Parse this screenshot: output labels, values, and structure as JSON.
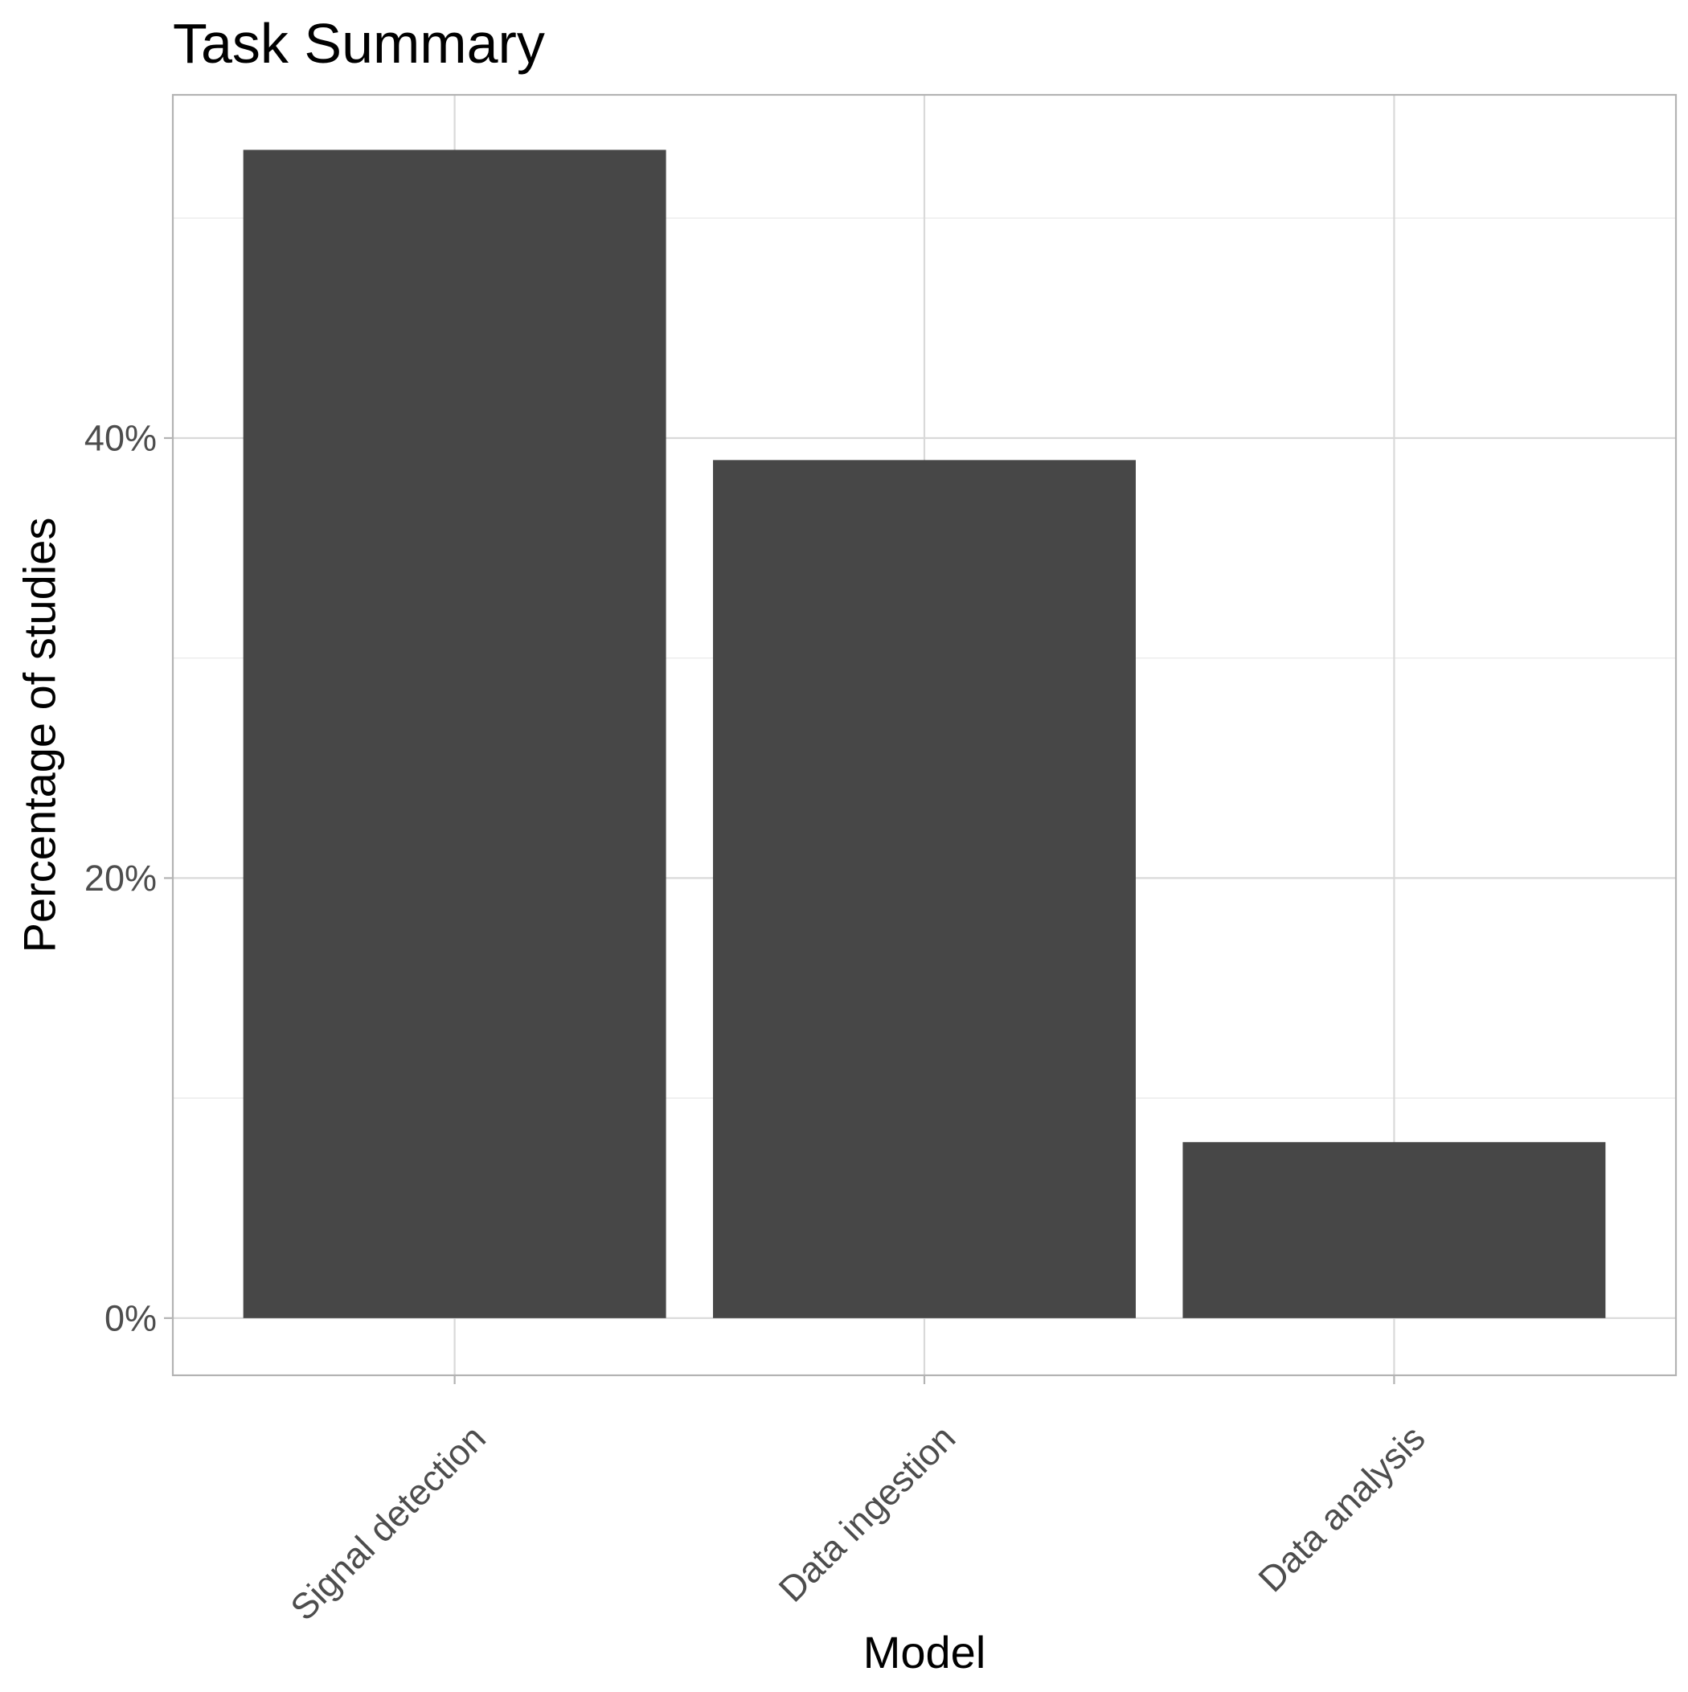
{
  "chart_data": {
    "type": "bar",
    "title": "Task Summary",
    "xlabel": "Model",
    "ylabel": "Percentage of studies",
    "categories": [
      "Signal detection",
      "Data ingestion",
      "Data analysis"
    ],
    "values": [
      53.1,
      39.0,
      8.0
    ],
    "value_unit": "%",
    "ylim": [
      -2.6,
      55.6
    ],
    "yticks": [
      0,
      20,
      40
    ],
    "ytick_labels": [
      "0%",
      "20%",
      "40%"
    ],
    "minor_yticks": [
      10,
      30,
      50
    ],
    "grid": true,
    "legend": "none",
    "bar_color": "#474747"
  }
}
